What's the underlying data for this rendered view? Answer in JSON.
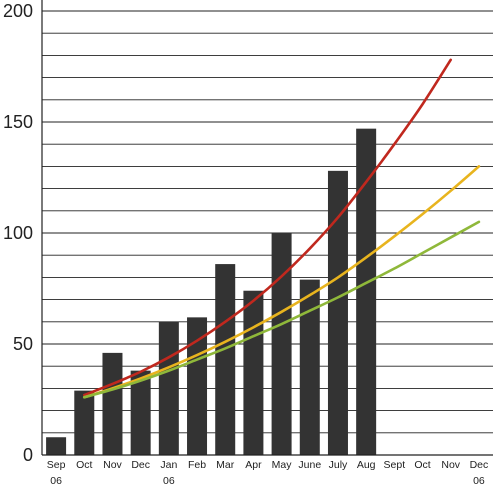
{
  "chart_data": {
    "type": "bar",
    "title": "",
    "xlabel": "",
    "ylabel": "",
    "categories": [
      "Sep",
      "Oct",
      "Nov",
      "Dec",
      "Jan",
      "Feb",
      "Mar",
      "Apr",
      "May",
      "June",
      "July",
      "Aug",
      "Sept",
      "Oct",
      "Nov",
      "Dec"
    ],
    "category_sublabels": [
      "06",
      "",
      "",
      "",
      "06",
      "",
      "",
      "",
      "",
      "",
      "",
      "",
      "",
      "",
      "",
      "06"
    ],
    "values": [
      8,
      29,
      46,
      38,
      60,
      62,
      86,
      74,
      100,
      79,
      128,
      147,
      null,
      null,
      null,
      null
    ],
    "bar_color": "#333333",
    "ylim": [
      0,
      200
    ],
    "yticks": [
      0,
      50,
      100,
      150,
      200
    ],
    "gridlines": true,
    "grid_step": 10,
    "series": [
      {
        "type": "line",
        "color": "#c0281e",
        "x": [
          1,
          2,
          3,
          4,
          5,
          6,
          7,
          8,
          9,
          10,
          11,
          12,
          13,
          14
        ],
        "values": [
          27,
          32,
          37.5,
          44,
          51.5,
          60,
          69.5,
          80.5,
          93,
          107,
          123,
          140,
          158,
          178
        ]
      },
      {
        "type": "line",
        "color": "#e8b41e",
        "x": [
          1,
          2,
          3,
          4,
          5,
          6,
          7,
          8,
          9,
          10,
          11,
          12,
          13,
          14,
          15
        ],
        "values": [
          26,
          30,
          34.5,
          39.5,
          45,
          51,
          57.5,
          64.5,
          72,
          80,
          89,
          98.5,
          108.5,
          119,
          130
        ]
      },
      {
        "type": "line",
        "color": "#8fb83a",
        "x": [
          1,
          2,
          3,
          4,
          5,
          6,
          7,
          8,
          9,
          10,
          11,
          12,
          13,
          14,
          15
        ],
        "values": [
          26,
          29.5,
          33.5,
          38,
          43,
          48,
          53.5,
          59,
          65,
          71,
          77.5,
          84,
          91,
          98,
          105
        ]
      }
    ]
  }
}
